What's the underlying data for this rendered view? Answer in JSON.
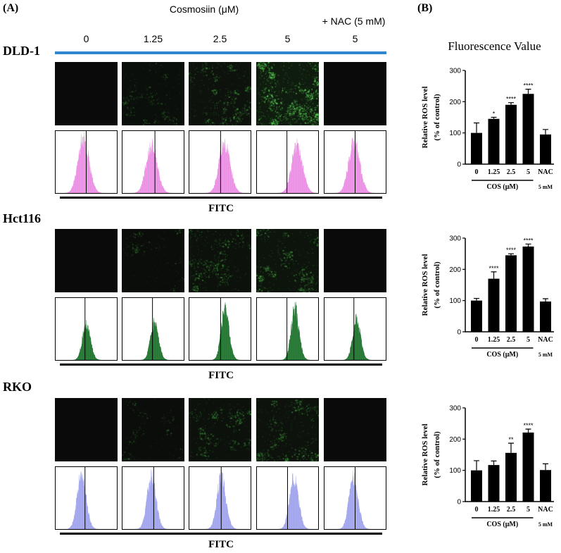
{
  "panel_a": {
    "label": "(A)",
    "treatment_title": "Cosmosiin (μM)",
    "nac_title": "+ NAC (5 mM)",
    "columns": [
      "0",
      "1.25",
      "2.5",
      "5",
      "5"
    ],
    "header_line_color": "#2f87d0",
    "image_background": "#0a0a0a",
    "fluorescence_color": "#5fe05a",
    "rows": [
      {
        "cell_line": "DLD-1",
        "xaxis_label": "FITC",
        "histogram_fill": "#f6b4f1",
        "histogram_edge": "#e47ddd"
      },
      {
        "cell_line": "Hct116",
        "xaxis_label": "FITC",
        "histogram_fill": "#3f9d4f",
        "histogram_edge": "#1b5f28"
      },
      {
        "cell_line": "RKO",
        "xaxis_label": "FITC",
        "histogram_fill": "#bfc1f6",
        "histogram_edge": "#9194e6"
      }
    ]
  },
  "panel_b": {
    "label": "(B)",
    "title": "Fluorescence Value"
  },
  "chart_data": [
    {
      "type": "bar",
      "categories": [
        "0",
        "1.25",
        "2.5",
        "5",
        "NAC"
      ],
      "values": [
        100,
        145,
        190,
        225,
        95
      ],
      "error": [
        32,
        5,
        7,
        15,
        16
      ],
      "significance": [
        "",
        "*",
        "****",
        "****",
        ""
      ],
      "ylabel": [
        "Relative ROS level",
        "(% of control)"
      ],
      "ylim": [
        0,
        300
      ],
      "yticks": [
        0,
        100,
        200,
        300
      ],
      "group_label": "COS (μM)",
      "nac_label": "5 mM",
      "bar_color": "#000000",
      "grid": false
    },
    {
      "type": "bar",
      "categories": [
        "0",
        "1.25",
        "2.5",
        "5",
        "NAC"
      ],
      "values": [
        100,
        170,
        245,
        273,
        97
      ],
      "error": [
        7,
        22,
        5,
        8,
        9
      ],
      "significance": [
        "",
        "****",
        "****",
        "****",
        ""
      ],
      "ylabel": [
        "Relative ROS level",
        "(% of control)"
      ],
      "ylim": [
        0,
        300
      ],
      "yticks": [
        0,
        100,
        200,
        300
      ],
      "group_label": "COS (μM)",
      "nac_label": "5 mM",
      "bar_color": "#000000",
      "grid": false
    },
    {
      "type": "bar",
      "categories": [
        "0",
        "1.25",
        "2.5",
        "5",
        "NAC"
      ],
      "values": [
        100,
        117,
        156,
        221,
        101
      ],
      "error": [
        31,
        13,
        31,
        11,
        20
      ],
      "significance": [
        "",
        "",
        "**",
        "****",
        ""
      ],
      "ylabel": [
        "Relative ROS level",
        "(% of control)"
      ],
      "ylim": [
        0,
        300
      ],
      "yticks": [
        0,
        100,
        200,
        300
      ],
      "group_label": "COS (μM)",
      "nac_label": "5 mM",
      "bar_color": "#000000",
      "grid": false
    }
  ]
}
